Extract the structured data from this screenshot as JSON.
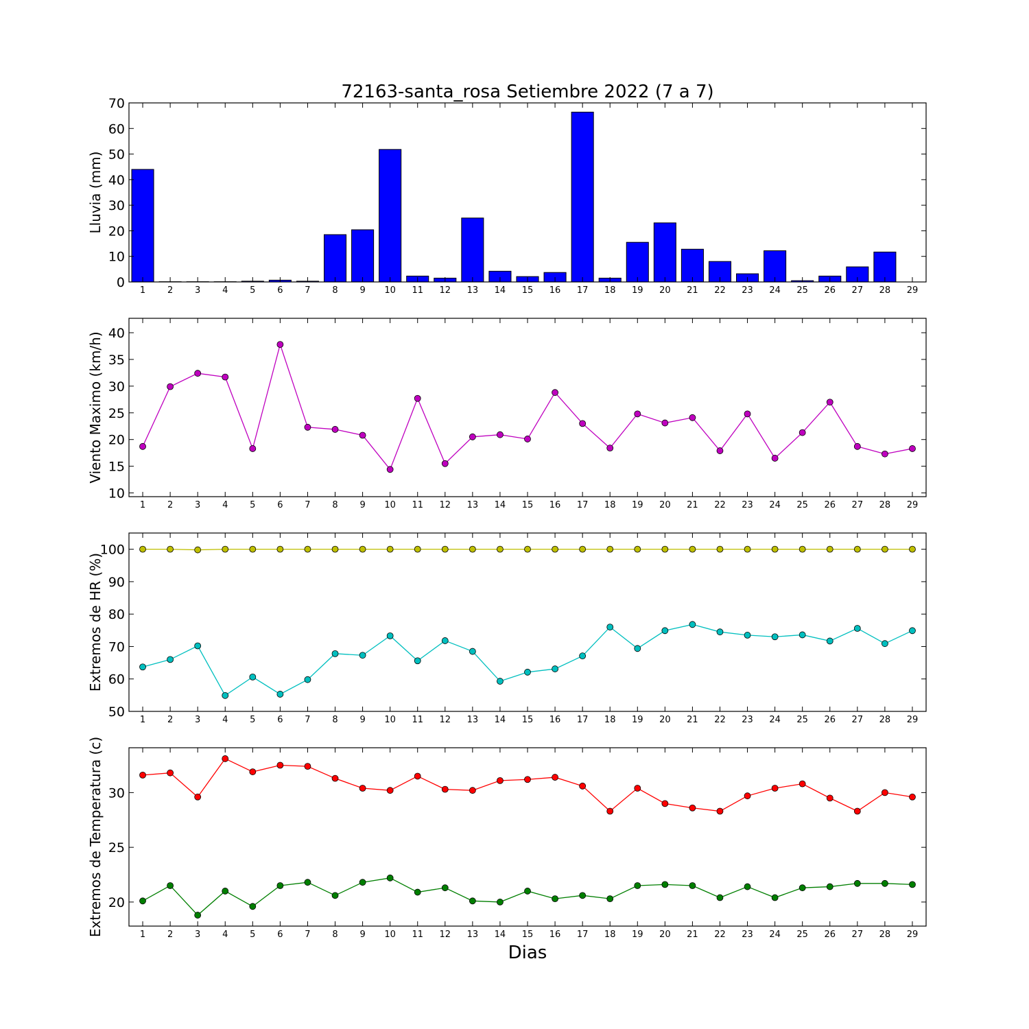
{
  "title": "72163-santa_rosa Setiembre 2022  (7 a 7)",
  "xlabel": "Dias",
  "chart_data": [
    {
      "type": "bar",
      "ylabel": "Lluvia (mm)",
      "ylim": [
        0,
        70
      ],
      "yticks": [
        0,
        10,
        20,
        30,
        40,
        50,
        60,
        70
      ],
      "xlim": [
        0.5,
        29.5
      ],
      "x": [
        1,
        2,
        3,
        4,
        5,
        6,
        7,
        8,
        9,
        10,
        11,
        12,
        13,
        14,
        15,
        16,
        17,
        18,
        19,
        20,
        21,
        22,
        23,
        24,
        25,
        26,
        27,
        28,
        29
      ],
      "series": [
        {
          "color": "#0000ff",
          "values": [
            44.0,
            0.1,
            0.1,
            0.1,
            0.3,
            0.7,
            0.3,
            18.5,
            20.4,
            51.8,
            2.3,
            1.5,
            25.0,
            4.2,
            2.1,
            3.7,
            66.4,
            1.5,
            15.5,
            23.1,
            12.8,
            8.0,
            3.2,
            12.2,
            0.5,
            2.3,
            5.9,
            11.7,
            0.0
          ]
        }
      ]
    },
    {
      "type": "line",
      "ylabel": "Viento Maximo (km/h)",
      "ylim": [
        9.3,
        42.7
      ],
      "yticks": [
        10,
        15,
        20,
        25,
        30,
        35,
        40
      ],
      "xlim": [
        0.5,
        29.5
      ],
      "x": [
        1,
        2,
        3,
        4,
        5,
        6,
        7,
        8,
        9,
        10,
        11,
        12,
        13,
        14,
        15,
        16,
        17,
        18,
        19,
        20,
        21,
        22,
        23,
        24,
        25,
        26,
        27,
        28,
        29
      ],
      "series": [
        {
          "color": "#bf00bf",
          "values": [
            18.7,
            29.9,
            32.4,
            31.7,
            18.3,
            37.8,
            22.3,
            21.9,
            20.8,
            14.4,
            27.7,
            15.5,
            20.5,
            20.9,
            20.1,
            28.8,
            23.0,
            18.4,
            24.8,
            23.1,
            24.1,
            17.9,
            24.8,
            16.5,
            21.3,
            27.0,
            18.7,
            17.3,
            18.3
          ]
        }
      ]
    },
    {
      "type": "line",
      "ylabel": "Extremos de HR (%)",
      "ylim": [
        50,
        105
      ],
      "yticks": [
        50,
        60,
        70,
        80,
        90,
        100
      ],
      "xlim": [
        0.5,
        29.5
      ],
      "x": [
        1,
        2,
        3,
        4,
        5,
        6,
        7,
        8,
        9,
        10,
        11,
        12,
        13,
        14,
        15,
        16,
        17,
        18,
        19,
        20,
        21,
        22,
        23,
        24,
        25,
        26,
        27,
        28,
        29
      ],
      "series": [
        {
          "color": "#bfbf00",
          "values": [
            100,
            100,
            99.8,
            100,
            100,
            100,
            100,
            100,
            100,
            100,
            100,
            100,
            100,
            100,
            100,
            100,
            100,
            100,
            100,
            100,
            100,
            100,
            100,
            100,
            100,
            100,
            100,
            100,
            100
          ]
        },
        {
          "color": "#00bfbf",
          "values": [
            63.7,
            66.0,
            70.2,
            54.9,
            60.6,
            55.3,
            59.8,
            67.8,
            67.3,
            73.3,
            65.6,
            71.8,
            68.5,
            59.3,
            62.1,
            63.1,
            67.1,
            76.0,
            69.4,
            74.9,
            76.8,
            74.5,
            73.5,
            73.0,
            73.6,
            71.7,
            75.6,
            70.9,
            74.9
          ]
        }
      ]
    },
    {
      "type": "line",
      "ylabel": "Extremos de Temperatura (c)",
      "ylim": [
        17.8,
        34.1
      ],
      "yticks": [
        20,
        25,
        30
      ],
      "xlim": [
        0.5,
        29.5
      ],
      "x": [
        1,
        2,
        3,
        4,
        5,
        6,
        7,
        8,
        9,
        10,
        11,
        12,
        13,
        14,
        15,
        16,
        17,
        18,
        19,
        20,
        21,
        22,
        23,
        24,
        25,
        26,
        27,
        28,
        29
      ],
      "series": [
        {
          "color": "#ff0000",
          "values": [
            31.6,
            31.8,
            29.6,
            33.1,
            31.9,
            32.5,
            32.4,
            31.3,
            30.4,
            30.2,
            31.5,
            30.3,
            30.2,
            31.1,
            31.2,
            31.4,
            30.6,
            28.3,
            30.4,
            29.0,
            28.6,
            28.3,
            29.7,
            30.4,
            30.8,
            29.5,
            28.3,
            30.0,
            29.6
          ]
        },
        {
          "color": "#007f00",
          "values": [
            20.1,
            21.5,
            18.8,
            21.0,
            19.6,
            21.5,
            21.8,
            20.6,
            21.8,
            22.2,
            20.9,
            21.3,
            20.1,
            20.0,
            21.0,
            20.3,
            20.6,
            20.3,
            21.5,
            21.6,
            21.5,
            20.4,
            21.4,
            20.4,
            21.3,
            21.4,
            21.7,
            21.7,
            21.6
          ]
        }
      ]
    }
  ]
}
